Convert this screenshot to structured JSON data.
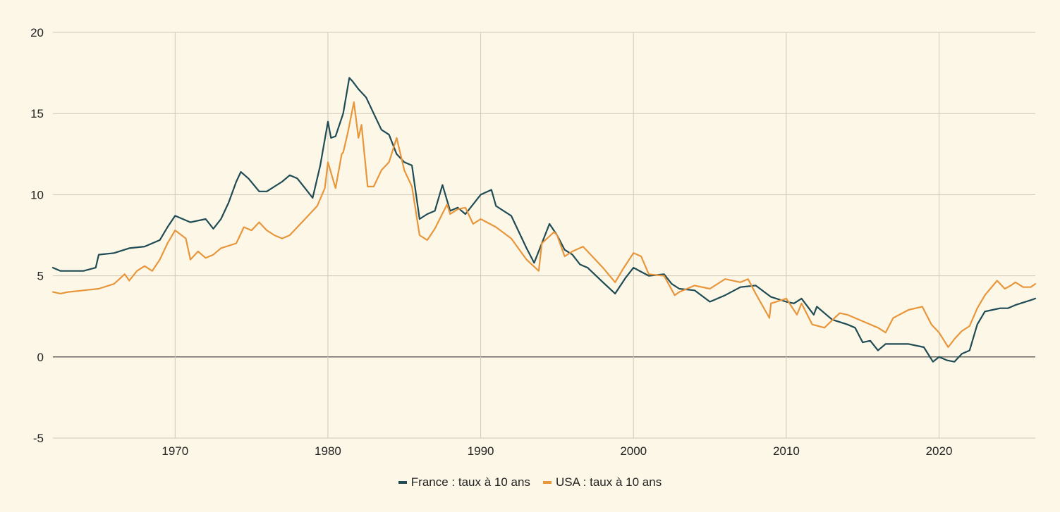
{
  "chart_data": {
    "type": "line",
    "title": "",
    "xlabel": "",
    "ylabel": "",
    "xlim": [
      1962,
      2026.3
    ],
    "ylim": [
      -5,
      20
    ],
    "yticks": [
      -5,
      0,
      5,
      10,
      15,
      20
    ],
    "xticks": [
      1970,
      1980,
      1990,
      2000,
      2010,
      2020
    ],
    "grid": true,
    "legend_position": "bottom",
    "series": [
      {
        "name": "France : taux à 10 ans",
        "color": "#1e4b55",
        "x": [
          1962,
          1962.5,
          1963,
          1964,
          1964.8,
          1965,
          1966,
          1967,
          1968,
          1969,
          1969.5,
          1970,
          1971,
          1972,
          1972.5,
          1973,
          1973.5,
          1974,
          1974.3,
          1974.8,
          1975.5,
          1976,
          1977,
          1977.5,
          1978,
          1978.5,
          1979,
          1979.5,
          1980,
          1980.2,
          1980.5,
          1981,
          1981.4,
          1981.6,
          1982,
          1982.5,
          1983,
          1983.5,
          1984,
          1984.5,
          1985,
          1985.5,
          1986,
          1986.5,
          1987,
          1987.5,
          1988,
          1988.5,
          1989,
          1990,
          1990.7,
          1991,
          1992,
          1993,
          1993.5,
          1994,
          1994.5,
          1995,
          1995.5,
          1996,
          1996.5,
          1997,
          1998,
          1998.8,
          1999.5,
          2000,
          2001,
          2002,
          2002.5,
          2003,
          2004,
          2005,
          2006,
          2007,
          2008,
          2009,
          2010,
          2010.5,
          2011,
          2011.8,
          2012,
          2013,
          2014,
          2014.5,
          2015,
          2015.5,
          2016,
          2016.5,
          2017,
          2018,
          2019,
          2019.6,
          2020,
          2020.5,
          2021,
          2021.5,
          2022,
          2022.5,
          2023,
          2023.5,
          2024,
          2024.5,
          2025,
          2026,
          2026.3
        ],
        "values": [
          5.5,
          5.3,
          5.3,
          5.3,
          5.5,
          6.3,
          6.4,
          6.7,
          6.8,
          7.2,
          8.0,
          8.7,
          8.3,
          8.5,
          7.9,
          8.5,
          9.5,
          10.8,
          11.4,
          11.0,
          10.2,
          10.2,
          10.8,
          11.2,
          11.0,
          10.4,
          9.8,
          11.8,
          14.5,
          13.5,
          13.6,
          15.0,
          17.2,
          17.0,
          16.5,
          16.0,
          15.0,
          14.0,
          13.7,
          12.5,
          12.0,
          11.8,
          8.5,
          8.8,
          9.0,
          10.6,
          9.0,
          9.2,
          8.8,
          10.0,
          10.3,
          9.3,
          8.7,
          6.7,
          5.8,
          7.0,
          8.2,
          7.5,
          6.6,
          6.3,
          5.7,
          5.5,
          4.6,
          3.9,
          4.9,
          5.5,
          5.0,
          5.1,
          4.5,
          4.2,
          4.1,
          3.4,
          3.8,
          4.3,
          4.4,
          3.7,
          3.4,
          3.3,
          3.6,
          2.6,
          3.1,
          2.3,
          2.0,
          1.8,
          0.9,
          1.0,
          0.4,
          0.8,
          0.8,
          0.8,
          0.6,
          -0.3,
          0.0,
          -0.2,
          -0.3,
          0.2,
          0.4,
          2.0,
          2.8,
          2.9,
          3.0,
          3.0,
          3.2,
          3.5,
          3.6
        ]
      },
      {
        "name": "USA : taux à 10 ans",
        "color": "#e8963c",
        "x": [
          1962,
          1962.5,
          1963,
          1964,
          1965,
          1966,
          1966.7,
          1967,
          1967.5,
          1968,
          1968.5,
          1969,
          1969.5,
          1970,
          1970.7,
          1971,
          1971.5,
          1972,
          1972.5,
          1973,
          1974,
          1974.5,
          1975,
          1975.5,
          1976,
          1976.5,
          1977,
          1977.5,
          1978,
          1978.5,
          1979,
          1979.3,
          1979.8,
          1980,
          1980.5,
          1980.9,
          1981,
          1981.3,
          1981.7,
          1982,
          1982.2,
          1982.6,
          1983,
          1983.5,
          1984,
          1984.5,
          1985,
          1985.5,
          1986,
          1986.5,
          1987,
          1987.8,
          1988,
          1988.5,
          1989,
          1989.5,
          1990,
          1991,
          1992,
          1993,
          1993.8,
          1994,
          1994.8,
          1995,
          1995.5,
          1996,
          1996.7,
          1997,
          1998,
          1998.8,
          1999.3,
          2000,
          2000.5,
          2001,
          2002,
          2002.7,
          2003,
          2004,
          2005,
          2006,
          2007,
          2007.5,
          2008,
          2008.9,
          2009,
          2010,
          2010.7,
          2011,
          2011.7,
          2012.5,
          2013.5,
          2014,
          2015,
          2016,
          2016.5,
          2017,
          2018,
          2018.9,
          2019.5,
          2020,
          2020.6,
          2021,
          2021.5,
          2022,
          2022.5,
          2023,
          2023.8,
          2024.3,
          2024.7,
          2025,
          2025.5,
          2026,
          2026.3
        ],
        "values": [
          4.0,
          3.9,
          4.0,
          4.1,
          4.2,
          4.5,
          5.1,
          4.7,
          5.3,
          5.6,
          5.3,
          6.0,
          7.0,
          7.8,
          7.3,
          6.0,
          6.5,
          6.1,
          6.3,
          6.7,
          7.0,
          8.0,
          7.8,
          8.3,
          7.8,
          7.5,
          7.3,
          7.5,
          8.0,
          8.5,
          9.0,
          9.3,
          10.4,
          12.0,
          10.4,
          12.5,
          12.6,
          13.8,
          15.7,
          13.5,
          14.3,
          10.5,
          10.5,
          11.5,
          12.0,
          13.5,
          11.5,
          10.5,
          7.5,
          7.2,
          7.9,
          9.4,
          8.8,
          9.1,
          9.2,
          8.2,
          8.5,
          8.0,
          7.3,
          6.0,
          5.3,
          7.0,
          7.7,
          7.5,
          6.2,
          6.5,
          6.8,
          6.5,
          5.5,
          4.6,
          5.4,
          6.4,
          6.2,
          5.1,
          5.0,
          3.8,
          4.0,
          4.4,
          4.2,
          4.8,
          4.6,
          4.8,
          3.9,
          2.4,
          3.3,
          3.6,
          2.6,
          3.3,
          2.0,
          1.8,
          2.7,
          2.6,
          2.2,
          1.8,
          1.5,
          2.4,
          2.9,
          3.1,
          2.0,
          1.5,
          0.6,
          1.1,
          1.6,
          1.9,
          3.0,
          3.8,
          4.7,
          4.2,
          4.4,
          4.6,
          4.3,
          4.3,
          4.5
        ]
      }
    ]
  }
}
